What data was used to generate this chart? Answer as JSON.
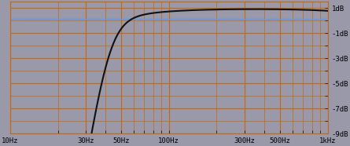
{
  "bg_color": "#9999aa",
  "grid_color_major": "#cc6600",
  "line_color": "#111111",
  "line_color2": "#5599ff",
  "xmin": 10,
  "xmax": 1000,
  "ymin": -9,
  "ymax": 1.5,
  "yticks": [
    1,
    -1,
    -3,
    -5,
    -7,
    -9
  ],
  "ytick_labels": [
    "1dB",
    "-1dB",
    "-3dB",
    "-5dB",
    "-7dB",
    "-9dB"
  ],
  "xtick_positions": [
    10,
    30,
    50,
    100,
    300,
    500,
    1000
  ],
  "xtick_labels": [
    "10Hz",
    "30Hz",
    "50Hz",
    "100Hz",
    "300Hz",
    "500Hz",
    "1kHz"
  ],
  "hline_y": 0.1,
  "peak_db": 0.9
}
